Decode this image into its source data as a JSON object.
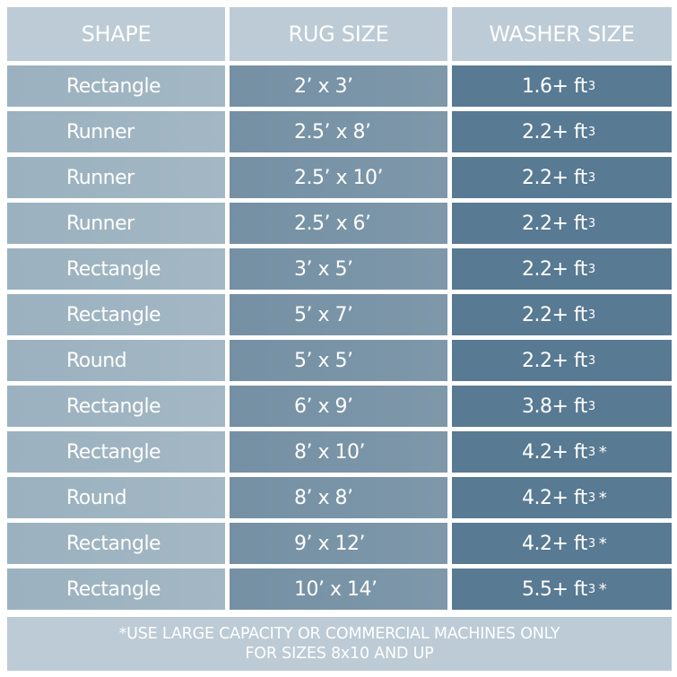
{
  "headers": [
    "SHAPE",
    "RUG SIZE",
    "WASHER SIZE"
  ],
  "rows": [
    {
      "shape": "Rectangle",
      "rug_size": "2’ x 3’",
      "washer": "1.6+ ft",
      "exp": "3",
      "note": ""
    },
    {
      "shape": "Runner",
      "rug_size": "2.5’ x 8’",
      "washer": "2.2+ ft",
      "exp": "3",
      "note": ""
    },
    {
      "shape": "Runner",
      "rug_size": "2.5’ x 10’",
      "washer": "2.2+ ft",
      "exp": "3",
      "note": ""
    },
    {
      "shape": "Runner",
      "rug_size": "2.5’ x 6’",
      "washer": "2.2+ ft",
      "exp": "3",
      "note": ""
    },
    {
      "shape": "Rectangle",
      "rug_size": "3’ x 5’",
      "washer": "2.2+ ft",
      "exp": "3",
      "note": ""
    },
    {
      "shape": "Rectangle",
      "rug_size": "5’ x 7’",
      "washer": "2.2+ ft",
      "exp": "3",
      "note": ""
    },
    {
      "shape": "Round",
      "rug_size": "5’ x 5’",
      "washer": "2.2+ ft",
      "exp": "3",
      "note": ""
    },
    {
      "shape": "Rectangle",
      "rug_size": "6’ x 9’",
      "washer": "3.8+ ft",
      "exp": "3",
      "note": ""
    },
    {
      "shape": "Rectangle",
      "rug_size": "8’ x 10’",
      "washer": "4.2+ ft",
      "exp": "3",
      "note": "*"
    },
    {
      "shape": "Round",
      "rug_size": "8’ x 8’",
      "washer": "4.2+ ft",
      "exp": "3",
      "note": "*"
    },
    {
      "shape": "Rectangle",
      "rug_size": "9’ x 12’",
      "washer": "4.2+ ft",
      "exp": "3",
      "note": "*"
    },
    {
      "shape": "Rectangle",
      "rug_size": "10’ x 14’",
      "washer": "5.5+ ft",
      "exp": "3",
      "note": "*"
    }
  ],
  "footnote": {
    "line1": "*USE LARGE CAPACITY OR COMMERCIAL MACHINES ONLY",
    "line2": "FOR SIZES 8x10 AND UP"
  },
  "colors": {
    "header": "#bccbd5",
    "shape_col": "#9fb4c1",
    "rug_col": "#7a95a8",
    "washer_col": "#587a93"
  }
}
